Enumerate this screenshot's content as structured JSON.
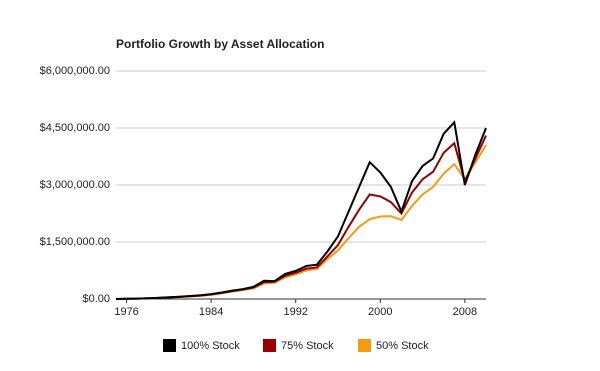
{
  "chart_data": {
    "type": "line",
    "title": "Portfolio Growth by Asset Allocation",
    "x": [
      1975,
      1976,
      1977,
      1978,
      1979,
      1980,
      1981,
      1982,
      1983,
      1984,
      1985,
      1986,
      1987,
      1988,
      1989,
      1990,
      1991,
      1992,
      1993,
      1994,
      1995,
      1996,
      1997,
      1998,
      1999,
      2000,
      2001,
      2002,
      2003,
      2004,
      2005,
      2006,
      2007,
      2008,
      2009,
      2010
    ],
    "series": [
      {
        "name": "100% Stock",
        "color": "#000000",
        "values": [
          0,
          5000,
          10000,
          20000,
          30000,
          45000,
          60000,
          80000,
          100000,
          130000,
          170000,
          220000,
          260000,
          320000,
          480000,
          470000,
          660000,
          740000,
          870000,
          900000,
          1250000,
          1650000,
          2300000,
          2950000,
          3600000,
          3330000,
          2950000,
          2300000,
          3100000,
          3500000,
          3700000,
          4350000,
          4650000,
          3000000,
          3800000,
          4500000
        ]
      },
      {
        "name": "75% Stock",
        "color": "#990000",
        "values": [
          0,
          5000,
          10000,
          18000,
          28000,
          40000,
          55000,
          72000,
          90000,
          120000,
          160000,
          210000,
          250000,
          300000,
          440000,
          450000,
          610000,
          690000,
          800000,
          830000,
          1120000,
          1420000,
          1900000,
          2350000,
          2750000,
          2700000,
          2550000,
          2250000,
          2800000,
          3150000,
          3350000,
          3850000,
          4100000,
          3100000,
          3700000,
          4300000
        ]
      },
      {
        "name": "50% Stock",
        "color": "#f39c11",
        "values": [
          0,
          5000,
          10000,
          17000,
          26000,
          38000,
          52000,
          68000,
          85000,
          110000,
          150000,
          195000,
          235000,
          280000,
          410000,
          430000,
          570000,
          650000,
          750000,
          790000,
          1050000,
          1280000,
          1600000,
          1900000,
          2100000,
          2170000,
          2180000,
          2080000,
          2450000,
          2750000,
          2950000,
          3300000,
          3550000,
          3150000,
          3600000,
          4050000
        ]
      }
    ],
    "xlim": [
      1975,
      2010
    ],
    "xticks": [
      1976,
      1984,
      1992,
      2000,
      2008
    ],
    "ylim": [
      0,
      6000000
    ],
    "yticks": [
      {
        "value": 0,
        "label": "$0.00"
      },
      {
        "value": 1500000,
        "label": "$1,500,000.00"
      },
      {
        "value": 3000000,
        "label": "$3,000,000.00"
      },
      {
        "value": 4500000,
        "label": "$4,500,000.00"
      },
      {
        "value": 6000000,
        "label": "$6,000,000.00"
      }
    ],
    "grid": true,
    "legend": "bottom"
  }
}
